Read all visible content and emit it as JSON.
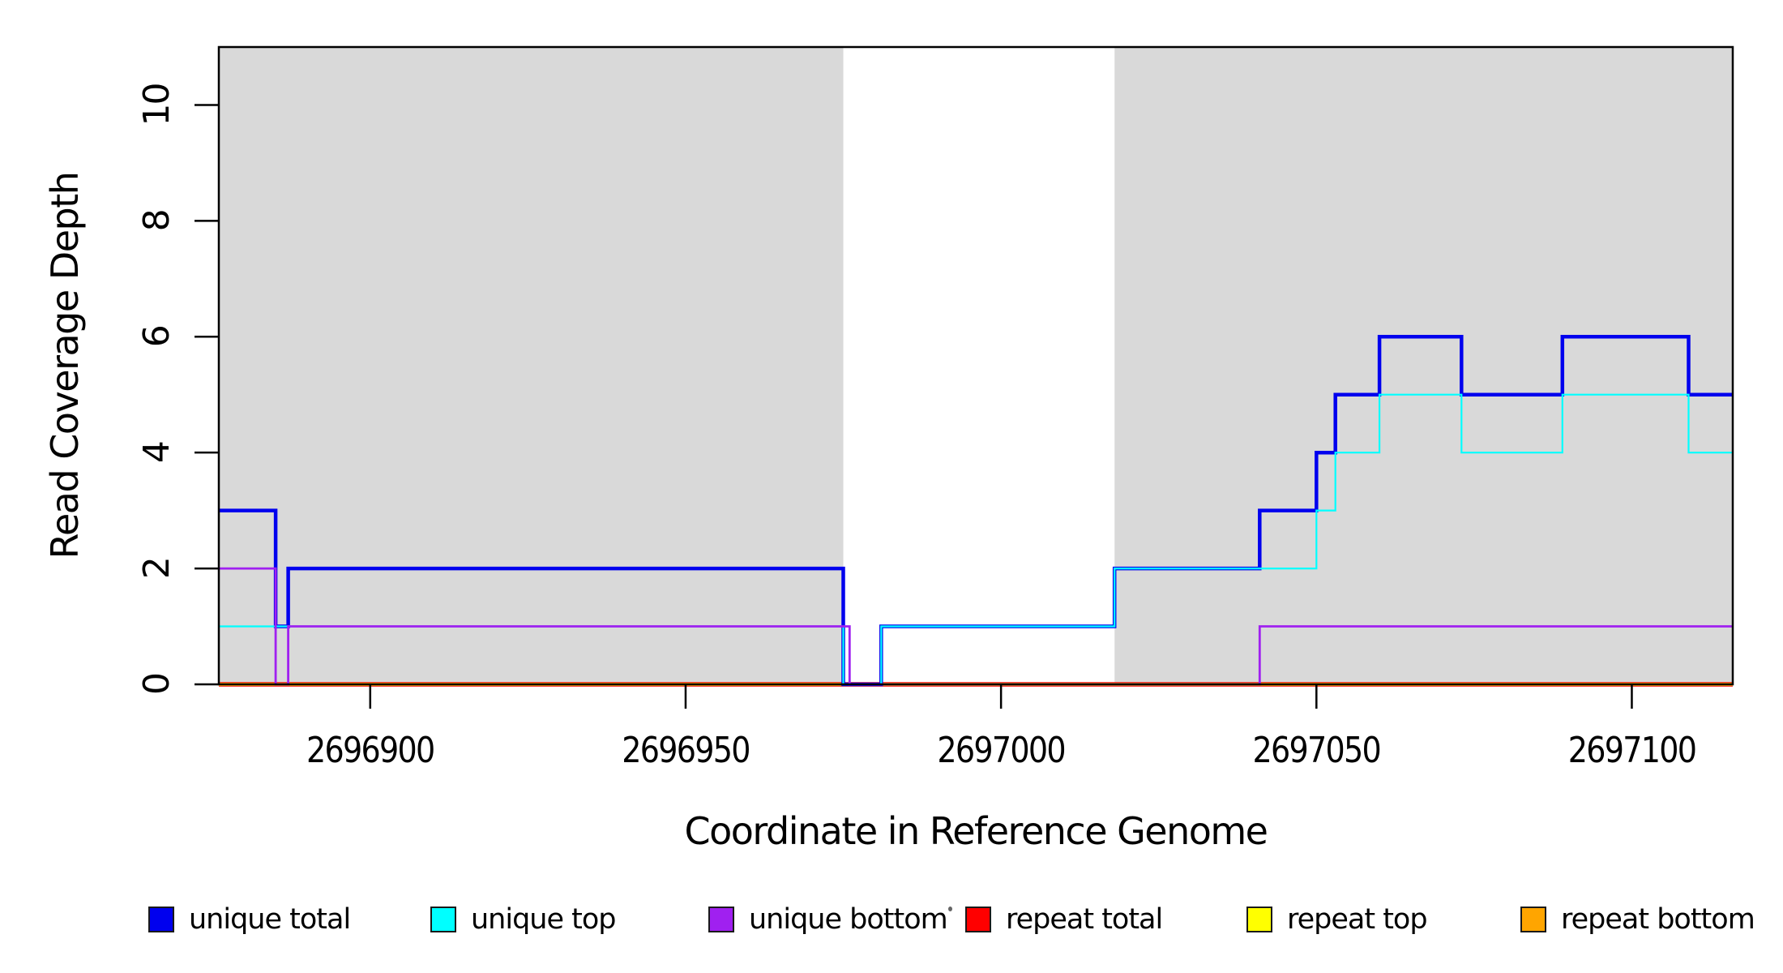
{
  "chart_data": {
    "type": "line",
    "variant": "step",
    "title": "",
    "xlabel": "Coordinate in Reference Genome",
    "ylabel": "Read Coverage Depth",
    "xlim": [
      2696876,
      2697116
    ],
    "ylim": [
      0,
      11
    ],
    "x_ticks": [
      2696900,
      2696950,
      2697000,
      2697050,
      2697100
    ],
    "y_ticks": [
      0,
      2,
      4,
      6,
      8,
      10
    ],
    "grid": false,
    "plot_background": "#ffffff",
    "shaded_regions": [
      {
        "x1": 2696876,
        "x2": 2696975,
        "color": "#d9d9d9"
      },
      {
        "x1": 2697018,
        "x2": 2697116,
        "color": "#d9d9d9"
      }
    ],
    "series": [
      {
        "name": "repeat total",
        "color": "#ff0000",
        "width": 5.5,
        "steps": [
          [
            2696876,
            0
          ]
        ]
      },
      {
        "name": "repeat top",
        "color": "#ffff00",
        "width": 4,
        "steps": [
          [
            2696876,
            0
          ]
        ]
      },
      {
        "name": "repeat bottom",
        "color": "#ffa500",
        "width": 4,
        "steps": [
          [
            2696876,
            0
          ]
        ]
      },
      {
        "name": "unique total",
        "color": "#0000ee",
        "width": 4.5,
        "steps": [
          [
            2696876,
            3
          ],
          [
            2696885,
            1
          ],
          [
            2696887,
            2
          ],
          [
            2696975,
            0
          ],
          [
            2696981,
            1
          ],
          [
            2697018,
            2
          ],
          [
            2697041,
            3
          ],
          [
            2697050,
            4
          ],
          [
            2697053,
            5
          ],
          [
            2697060,
            6
          ],
          [
            2697073,
            5
          ],
          [
            2697089,
            6
          ],
          [
            2697109,
            5
          ]
        ]
      },
      {
        "name": "unique top",
        "color": "#00ffff",
        "width": 2.2,
        "steps": [
          [
            2696876,
            1
          ],
          [
            2696975,
            0
          ],
          [
            2696981,
            1
          ],
          [
            2697018,
            2
          ],
          [
            2697050,
            3
          ],
          [
            2697053,
            4
          ],
          [
            2697060,
            5
          ],
          [
            2697073,
            4
          ],
          [
            2697089,
            5
          ],
          [
            2697109,
            4
          ]
        ]
      },
      {
        "name": "unique bottom",
        "color": "#a020f0",
        "width": 2.8,
        "steps": [
          [
            2696876,
            2
          ],
          [
            2696885,
            0
          ],
          [
            2696887,
            1
          ],
          [
            2696976,
            0
          ],
          [
            2697041,
            1
          ]
        ]
      }
    ]
  },
  "legend": {
    "items": [
      {
        "label": "unique total",
        "color": "#0000ee"
      },
      {
        "label": "unique top",
        "color": "#00ffff"
      },
      {
        "label": "unique bottom",
        "color": "#a020f0"
      },
      {
        "label": "repeat total",
        "color": "#ff0000"
      },
      {
        "label": "repeat top",
        "color": "#ffff00"
      },
      {
        "label": "repeat bottom",
        "color": "#ffa500"
      }
    ],
    "item_lefts": [
      183,
      531,
      874,
      1191,
      1538,
      1876
    ]
  },
  "axis_style": {
    "tick_color": "#000000",
    "box_color": "#000000",
    "tick_label_size": 44
  }
}
